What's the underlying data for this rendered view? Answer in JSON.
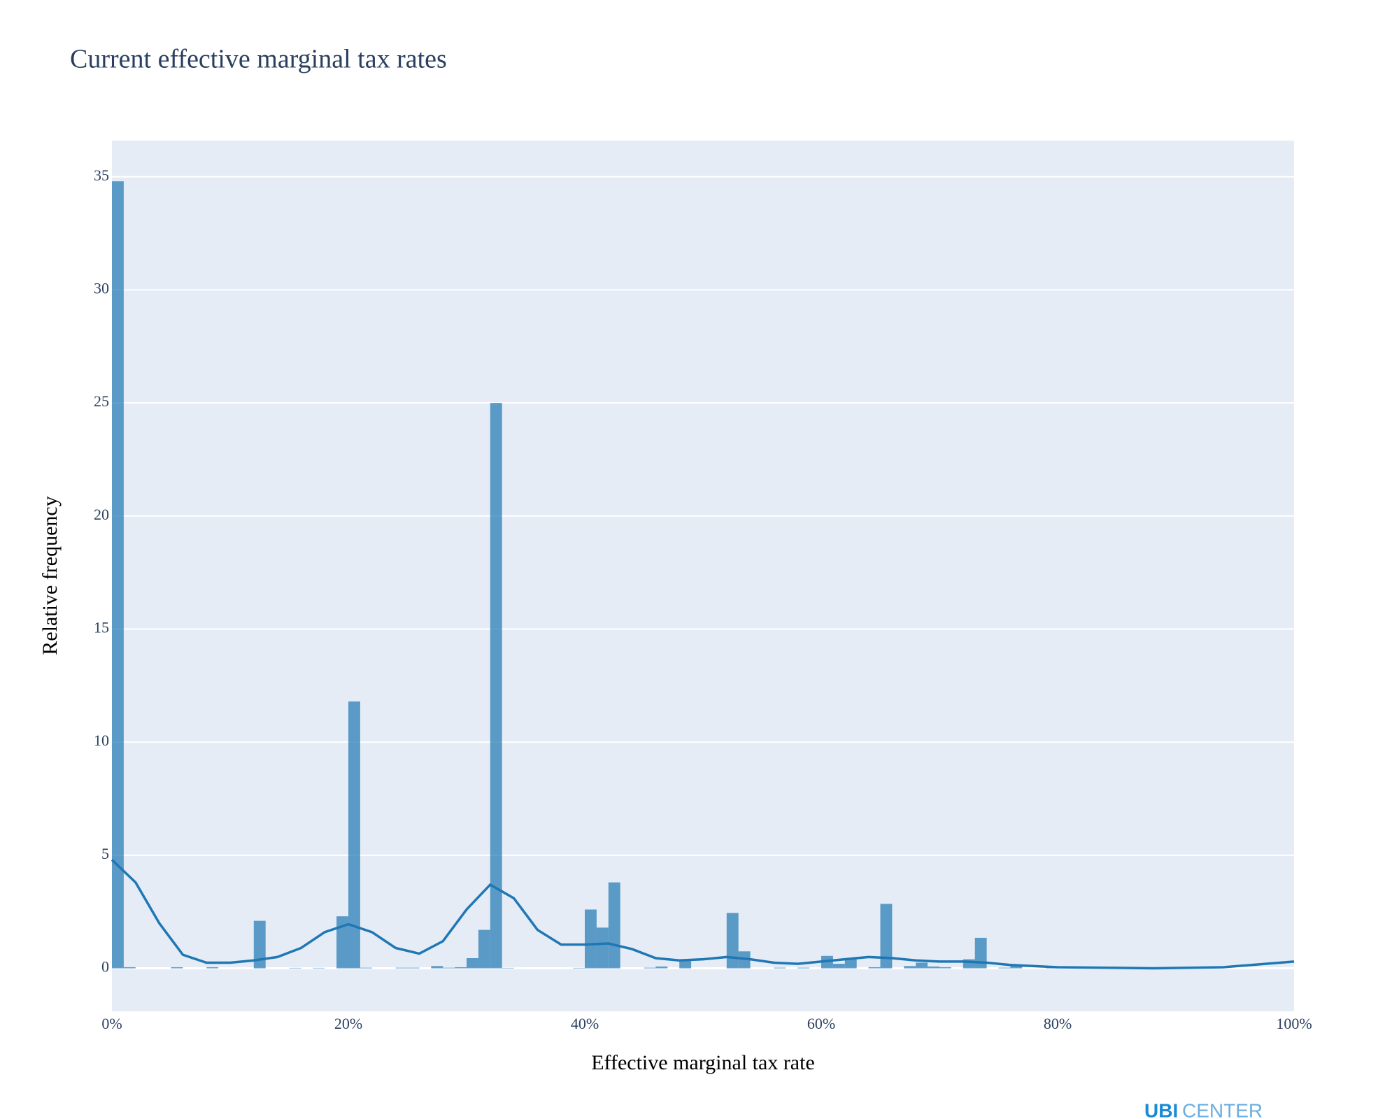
{
  "chart_data": {
    "type": "histogram",
    "title": "Current effective marginal tax rates",
    "xlabel": "Effective marginal tax rate",
    "ylabel": "Relative frequency",
    "watermark": {
      "bold": "UBI",
      "light": "CENTER"
    },
    "color": "#1f77b4",
    "bins": [
      0,
      1,
      2,
      3,
      4,
      5,
      6,
      7,
      8,
      9,
      10,
      11,
      12,
      13,
      14,
      15,
      16,
      17,
      18,
      19,
      20,
      21,
      22,
      23,
      24,
      25,
      26,
      27,
      28,
      29,
      30,
      31,
      32,
      33,
      34,
      35,
      36,
      37,
      38,
      39,
      40,
      41,
      42,
      43,
      44,
      45,
      46,
      47,
      48,
      49,
      50,
      51,
      52,
      53,
      54,
      55,
      56,
      57,
      58,
      59,
      60,
      61,
      62,
      63,
      64,
      65,
      66,
      67,
      68,
      69,
      70,
      71,
      72,
      73,
      74,
      75,
      76,
      77,
      78,
      79,
      80,
      81,
      82,
      83,
      84,
      85,
      86,
      87,
      88,
      89,
      90,
      91,
      92,
      93,
      94,
      95,
      96,
      97,
      98,
      99,
      100
    ],
    "counts": [
      34.8,
      0.05,
      0,
      0,
      0,
      0.05,
      0,
      0,
      0.05,
      0,
      0,
      0,
      2.1,
      0,
      0,
      0.02,
      0,
      0.02,
      0,
      2.3,
      11.8,
      0.03,
      0,
      0,
      0.03,
      0.03,
      0,
      0.1,
      0.03,
      0.05,
      0.45,
      1.7,
      25.0,
      0.02,
      0,
      0,
      0,
      0,
      0,
      0.02,
      2.6,
      1.8,
      3.8,
      0,
      0,
      0.03,
      0.08,
      0,
      0.4,
      0,
      0,
      0,
      2.45,
      0.75,
      0,
      0,
      0.03,
      0,
      0.03,
      0,
      0.55,
      0.2,
      0.45,
      0,
      0.05,
      2.85,
      0,
      0.1,
      0.25,
      0.08,
      0.05,
      0,
      0.4,
      1.35,
      0,
      0.03,
      0.1,
      0,
      0,
      0.05,
      0,
      0,
      0,
      0,
      0,
      0,
      0,
      0,
      0,
      0,
      0,
      0,
      0,
      0,
      0,
      0,
      0,
      0,
      0,
      0
    ],
    "kde": {
      "color": "#1f77b4",
      "x": [
        0,
        2,
        4,
        6,
        8,
        10,
        12,
        14,
        16,
        18,
        20,
        22,
        24,
        26,
        28,
        30,
        32,
        34,
        36,
        38,
        40,
        42,
        44,
        46,
        48,
        50,
        52,
        54,
        56,
        58,
        60,
        62,
        64,
        66,
        68,
        70,
        72,
        74,
        76,
        78,
        80,
        85,
        88,
        94,
        100
      ],
      "values": [
        4.8,
        3.8,
        2.0,
        0.6,
        0.25,
        0.25,
        0.35,
        0.5,
        0.9,
        1.6,
        1.95,
        1.6,
        0.9,
        0.65,
        1.2,
        2.6,
        3.7,
        3.1,
        1.7,
        1.05,
        1.05,
        1.1,
        0.85,
        0.45,
        0.35,
        0.4,
        0.5,
        0.4,
        0.25,
        0.2,
        0.3,
        0.4,
        0.5,
        0.45,
        0.35,
        0.3,
        0.3,
        0.25,
        0.15,
        0.1,
        0.05,
        0.02,
        0.0,
        0.05,
        0.3
      ]
    },
    "xlim": [
      0,
      100
    ],
    "ylim": [
      -1.9,
      36.6
    ],
    "xticks": [
      {
        "value": 0,
        "label": "0%"
      },
      {
        "value": 20,
        "label": "20%"
      },
      {
        "value": 40,
        "label": "40%"
      },
      {
        "value": 60,
        "label": "60%"
      },
      {
        "value": 80,
        "label": "80%"
      },
      {
        "value": 100,
        "label": "100%"
      }
    ],
    "yticks": [
      0,
      5,
      10,
      15,
      20,
      25,
      30,
      35
    ],
    "grid": true
  }
}
